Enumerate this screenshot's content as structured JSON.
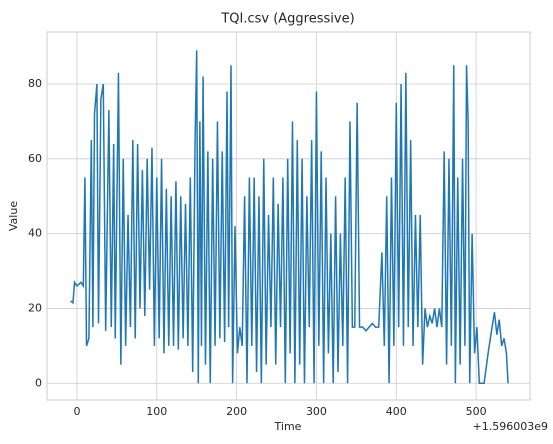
{
  "chart_data": {
    "type": "line",
    "title": "TQI.csv (Aggressive)",
    "xlabel": "Time",
    "ylabel": "Value",
    "x_offset_label": "+1.596003e9",
    "series": [
      {
        "name": "TQI",
        "color": "#1f77b4",
        "x": [
          -8,
          -5,
          -3,
          0,
          5,
          8,
          10,
          12,
          15,
          18,
          20,
          22,
          25,
          27,
          30,
          33,
          36,
          40,
          43,
          46,
          48,
          52,
          55,
          58,
          61,
          64,
          67,
          70,
          73,
          76,
          79,
          82,
          85,
          88,
          91,
          94,
          97,
          100,
          103,
          106,
          109,
          112,
          115,
          118,
          121,
          124,
          127,
          130,
          133,
          136,
          139,
          142,
          145,
          148,
          150,
          152,
          154,
          156,
          158,
          161,
          164,
          167,
          170,
          173,
          176,
          179,
          182,
          185,
          188,
          190,
          193,
          195,
          198,
          201,
          204,
          207,
          210,
          213,
          216,
          219,
          222,
          225,
          228,
          231,
          234,
          237,
          240,
          243,
          246,
          249,
          252,
          255,
          258,
          261,
          264,
          267,
          270,
          273,
          276,
          279,
          282,
          285,
          288,
          291,
          294,
          297,
          300,
          303,
          306,
          309,
          312,
          315,
          318,
          321,
          324,
          327,
          330,
          333,
          336,
          339,
          342,
          345,
          348,
          351,
          354,
          358,
          362,
          366,
          370,
          374,
          378,
          382,
          385,
          388,
          391,
          394,
          397,
          400,
          403,
          406,
          409,
          412,
          415,
          418,
          421,
          424,
          427,
          430,
          433,
          436,
          439,
          442,
          445,
          448,
          451,
          454,
          457,
          460,
          463,
          466,
          469,
          472,
          474,
          477,
          480,
          483,
          486,
          488,
          490,
          492,
          495,
          498,
          501,
          504,
          510,
          515,
          520,
          523,
          526,
          529,
          532,
          535,
          538,
          540
        ],
        "values": [
          22,
          21.5,
          27,
          26,
          27,
          26,
          55,
          10,
          12,
          65,
          15,
          72,
          80,
          16,
          76,
          80,
          14,
          73,
          15,
          64,
          12,
          83,
          5,
          60,
          10,
          45,
          15,
          65,
          12,
          64,
          20,
          57,
          18,
          60,
          25,
          63,
          10,
          55,
          12,
          60,
          8,
          52,
          10,
          50,
          10,
          54,
          9,
          50,
          12,
          48,
          10,
          55,
          3,
          65,
          89,
          0,
          70,
          10,
          82,
          5,
          62,
          0,
          60,
          10,
          70,
          12,
          62,
          11,
          78,
          15,
          85,
          0,
          42,
          8,
          15,
          10,
          50,
          0,
          55,
          10,
          55,
          3,
          50,
          0,
          60,
          5,
          45,
          15,
          55,
          5,
          48,
          15,
          55,
          0,
          60,
          8,
          70,
          0,
          65,
          5,
          60,
          0,
          50,
          15,
          65,
          0,
          78,
          10,
          62,
          0,
          55,
          8,
          40,
          0,
          50,
          3,
          40,
          10,
          55,
          0,
          70,
          15,
          15,
          75,
          15,
          15,
          14,
          15,
          16,
          15,
          15,
          35,
          10,
          50,
          0,
          55,
          10,
          75,
          15,
          80,
          10,
          83,
          15,
          65,
          10,
          45,
          15,
          45,
          5,
          20,
          15,
          18,
          16,
          20,
          15,
          20,
          15,
          62,
          5,
          60,
          10,
          85,
          0,
          55,
          5,
          60,
          10,
          85,
          70,
          0,
          40,
          8,
          15,
          0,
          0,
          8,
          15,
          19,
          13,
          17,
          10,
          12,
          8,
          0
        ]
      }
    ],
    "xlim": [
      -37.5,
      567.5
    ],
    "xticks": [
      0,
      100,
      200,
      300,
      400,
      500
    ],
    "ylim": [
      -4.47,
      93.9
    ],
    "yticks": [
      0,
      20,
      40,
      60,
      80
    ],
    "grid": true
  }
}
